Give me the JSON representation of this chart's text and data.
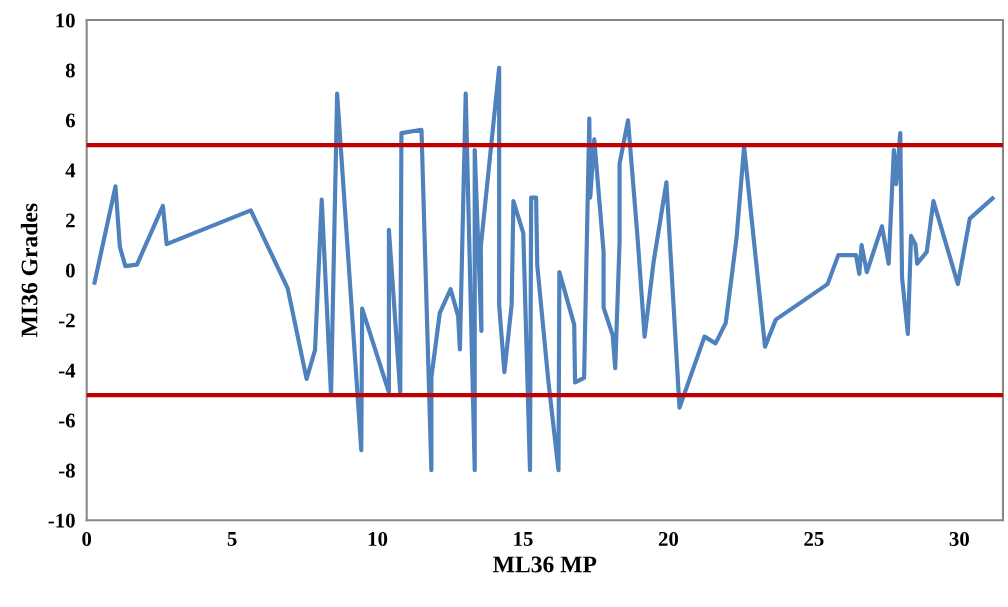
{
  "chart_data": {
    "type": "line",
    "xlabel": "ML36 MP",
    "ylabel": "MI36 Grades",
    "xlim": [
      0,
      31.5
    ],
    "xticks": [
      0,
      5,
      10,
      15,
      20,
      25,
      30
    ],
    "ylim": [
      -10,
      10
    ],
    "yticks": [
      -10,
      -8,
      -6,
      -4,
      -2,
      0,
      2,
      4,
      6,
      8,
      10
    ],
    "grid": false,
    "legend": false,
    "marker": "none",
    "line_style": "solid",
    "series": [
      {
        "color": "#4f81bd",
        "x": [
          0.27,
          0.99,
          1.14,
          1.33,
          1.73,
          2.62,
          2.75,
          5.64,
          6.91,
          7.56,
          7.85,
          8.08,
          8.4,
          8.61,
          9.44,
          9.47,
          10.39,
          10.39,
          10.78,
          10.82,
          11.51,
          11.85,
          11.85,
          12.14,
          12.51,
          12.77,
          12.83,
          13.03,
          13.34,
          13.34,
          13.57,
          13.55,
          14.18,
          14.18,
          14.36,
          14.61,
          14.67,
          15.01,
          15.24,
          15.28,
          15.45,
          15.49,
          15.87,
          16.22,
          16.25,
          16.76,
          16.79,
          17.1,
          17.28,
          17.31,
          17.45,
          17.77,
          17.77,
          18.08,
          18.17,
          18.32,
          18.32,
          18.61,
          18.94,
          19.18,
          19.49,
          19.93,
          20.38,
          21.24,
          21.62,
          21.97,
          22.34,
          22.6,
          23.32,
          23.69,
          25.47,
          25.84,
          26.45,
          26.56,
          26.64,
          26.82,
          27.34,
          27.57,
          27.75,
          27.83,
          27.97,
          28.03,
          28.23,
          28.34,
          28.49,
          28.55,
          28.88,
          29.11,
          29.95,
          30.36,
          31.14
        ],
        "values": [
          -0.5,
          3.35,
          0.93,
          0.16,
          0.22,
          2.57,
          1.04,
          2.39,
          -0.73,
          -4.35,
          -3.2,
          2.82,
          -5.0,
          7.06,
          -7.2,
          -1.54,
          -4.89,
          1.61,
          -4.89,
          5.48,
          5.61,
          -8.0,
          -4.28,
          -1.71,
          -0.76,
          -1.84,
          -3.17,
          7.06,
          -8.0,
          4.8,
          -2.43,
          0.95,
          8.09,
          -1.4,
          -4.08,
          -1.37,
          2.76,
          1.48,
          -8.0,
          2.9,
          2.9,
          0.19,
          -4.42,
          -8.0,
          -0.08,
          -2.18,
          -4.49,
          -4.31,
          6.06,
          2.9,
          5.23,
          0.73,
          -1.5,
          -2.59,
          -3.92,
          1.14,
          4.26,
          5.99,
          1.27,
          -2.66,
          0.33,
          3.51,
          -5.5,
          -2.66,
          -2.93,
          -2.11,
          1.27,
          4.93,
          -3.06,
          -1.98,
          -0.56,
          0.6,
          0.6,
          -0.15,
          1.0,
          -0.08,
          1.75,
          0.26,
          4.8,
          3.44,
          5.48,
          -0.28,
          -2.55,
          1.37,
          1.03,
          0.26,
          0.73,
          2.76,
          -0.56,
          2.06,
          2.87
        ]
      }
    ],
    "ref_lines": [
      {
        "axis": "y",
        "value": 5,
        "color": "#c00000",
        "line_style": "solid"
      },
      {
        "axis": "y",
        "value": -5,
        "color": "#c00000",
        "line_style": "solid"
      }
    ]
  }
}
